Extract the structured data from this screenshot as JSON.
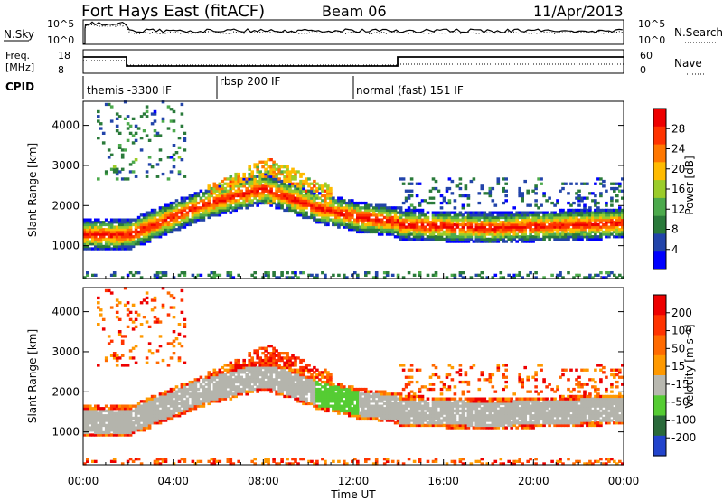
{
  "header": {
    "title": "Fort Hays East (fitACF)",
    "beam": "Beam 06",
    "date": "11/Apr/2013"
  },
  "top_panels": {
    "nsky_label": "N.Sky",
    "nsky_ticks": [
      "10^5",
      "10^0"
    ],
    "nsearch_label": "N.Search",
    "freq_label": "Freq.",
    "freq_unit": "[MHz]",
    "freq_ticks": [
      "18",
      "8"
    ],
    "nave_label": "Nave",
    "nave_ticks": [
      "60",
      "0"
    ],
    "cpid_label": "CPID",
    "cpid_segments": [
      {
        "start": 0,
        "end": 6,
        "label": "themis -3300 IF"
      },
      {
        "start": 6,
        "end": 12,
        "label": "rbsp 200 IF"
      },
      {
        "start": 12,
        "end": 24,
        "label": "normal (fast) 151 IF"
      }
    ]
  },
  "chart_data": [
    {
      "type": "heatmap",
      "name": "power",
      "ylabel": "Slant Range [km]",
      "xlim": [
        0,
        24
      ],
      "ylim": [
        180,
        4600
      ],
      "yticks": [
        "1000",
        "2000",
        "3000",
        "4000"
      ],
      "colorbar": {
        "label": "Power [dB]",
        "ticks": [
          "28",
          "24",
          "20",
          "16",
          "12",
          "8",
          "4"
        ],
        "range": [
          0,
          30
        ]
      }
    },
    {
      "type": "heatmap",
      "name": "velocity",
      "ylabel": "Slant Range [km]",
      "xlabel": "Time UT",
      "xlim": [
        0,
        24
      ],
      "ylim": [
        180,
        4600
      ],
      "yticks": [
        "1000",
        "2000",
        "3000",
        "4000"
      ],
      "xticks": [
        "00:00",
        "04:00",
        "08:00",
        "12:00",
        "16:00",
        "20:00",
        "00:00"
      ],
      "colorbar": {
        "label": "Velocity [m s⁻¹]",
        "ticks": [
          "200",
          "100",
          "50",
          "15",
          "-15",
          "-50",
          "-100",
          "-200"
        ]
      }
    }
  ],
  "colors": {
    "power_scale": [
      "#0000ff",
      "#2244aa",
      "#2a7a3a",
      "#4caa4c",
      "#9bcc2a",
      "#ffbb00",
      "#ff7700",
      "#ff3300",
      "#ee0000"
    ],
    "velocity_scale": [
      "#2244cc",
      "#2a6a3a",
      "#55cc33",
      "#b8b8b0",
      "#ff9900",
      "#ff6a00",
      "#ff3300",
      "#ee0000"
    ],
    "ground_scatter": "#b4b4ac"
  }
}
